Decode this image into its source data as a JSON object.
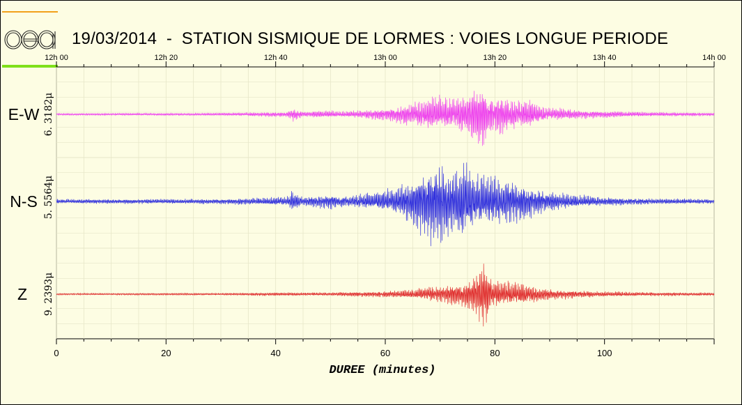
{
  "header": {
    "title": "19/03/2014  -  STATION SISMIQUE DE LORMES : VOIES LONGUE PERIODE",
    "logo_text": "cea"
  },
  "colors": {
    "background": "#fdfde3",
    "grid": "#e6e6c8",
    "ew": "#ee44ee",
    "ns": "#3333dd",
    "z": "#e03030",
    "logo_orange": "#f2a01a",
    "logo_green": "#7fe01a"
  },
  "chart_data": {
    "type": "line",
    "title": "19/03/2014  -  STATION SISMIQUE DE LORMES : VOIES LONGUE PERIODE",
    "xlabel": "DUREE (minutes)",
    "xlim": [
      0,
      120
    ],
    "x_ticks": [
      0,
      20,
      40,
      60,
      80,
      100
    ],
    "x_tick_labels": [
      "0",
      "20",
      "40",
      "60",
      "80",
      "100"
    ],
    "time_ticks": [
      0,
      20,
      40,
      60,
      80,
      100,
      120
    ],
    "time_tick_labels": [
      "12h 00",
      "12h 20",
      "12h 40",
      "13h 00",
      "13h 20",
      "13h 40",
      "14h 00"
    ],
    "grid": true,
    "series": [
      {
        "name": "E-W",
        "scale_label": "6. 3182μ",
        "color": "#ee44ee",
        "envelope": {
          "x": [
            0,
            30,
            42,
            43,
            45,
            50,
            52,
            58,
            62,
            65,
            68,
            70,
            72,
            75,
            77,
            78,
            79,
            81,
            84,
            86,
            88,
            90,
            95,
            100,
            110,
            120
          ],
          "amplitude": [
            0.03,
            0.04,
            0.08,
            0.2,
            0.08,
            0.12,
            0.08,
            0.15,
            0.22,
            0.4,
            0.48,
            0.55,
            0.45,
            0.62,
            0.85,
            1.0,
            0.55,
            0.6,
            0.38,
            0.48,
            0.28,
            0.22,
            0.14,
            0.1,
            0.06,
            0.05
          ]
        }
      },
      {
        "name": "N-S",
        "scale_label": "5. 5564μ",
        "color": "#3333dd",
        "envelope": {
          "x": [
            0,
            30,
            42,
            43,
            45,
            50,
            52,
            58,
            62,
            65,
            67,
            69,
            70,
            72,
            74,
            76,
            78,
            80,
            82,
            84,
            86,
            88,
            90,
            95,
            100,
            110,
            120
          ],
          "amplitude": [
            0.05,
            0.06,
            0.1,
            0.25,
            0.1,
            0.18,
            0.12,
            0.2,
            0.32,
            0.55,
            0.75,
            0.95,
            1.0,
            0.7,
            0.85,
            0.7,
            0.6,
            0.55,
            0.5,
            0.45,
            0.4,
            0.3,
            0.22,
            0.15,
            0.1,
            0.07,
            0.05
          ]
        }
      },
      {
        "name": "Z",
        "scale_label": "9. 2393μ",
        "color": "#e03030",
        "envelope": {
          "x": [
            0,
            30,
            43,
            45,
            55,
            60,
            65,
            70,
            74,
            77,
            78,
            79,
            81,
            84,
            86,
            88,
            90,
            95,
            100,
            110,
            120
          ],
          "amplitude": [
            0.02,
            0.03,
            0.05,
            0.04,
            0.06,
            0.08,
            0.12,
            0.22,
            0.3,
            0.6,
            1.0,
            0.45,
            0.3,
            0.32,
            0.25,
            0.2,
            0.15,
            0.1,
            0.07,
            0.05,
            0.04
          ]
        }
      }
    ]
  }
}
